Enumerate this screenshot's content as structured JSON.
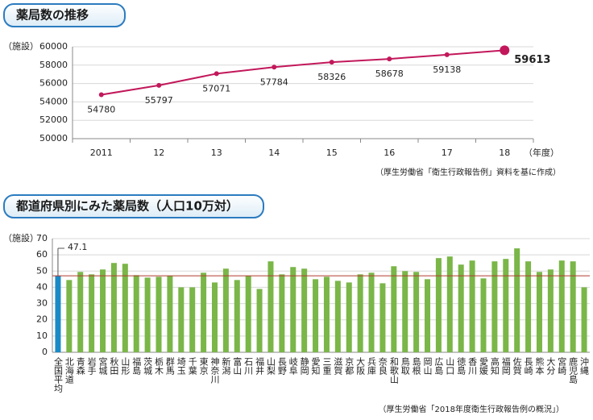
{
  "chart_data": [
    {
      "type": "line",
      "title": "薬局数の推移",
      "y_unit": "（施設）",
      "x_unit": "（年度）",
      "source": "（厚生労働省「衛生行政報告例」資料を基に作成）",
      "categories": [
        "2011",
        "12",
        "13",
        "14",
        "15",
        "16",
        "17",
        "18"
      ],
      "values": [
        54780,
        55797,
        57071,
        57784,
        58326,
        58678,
        59138,
        59613
      ],
      "color": "#c2185b",
      "ylim": [
        50000,
        60000
      ],
      "yticks": [
        50000,
        52000,
        54000,
        56000,
        58000,
        60000
      ],
      "grid": true
    },
    {
      "type": "bar",
      "title": "都道府県別にみた薬局数（人口10万対）",
      "y_unit": "（施設）",
      "source": "（厚生労働省「2018年度衛生行政報告例の概況」）",
      "categories": [
        "全国平均",
        "北海道",
        "青森",
        "岩手",
        "宮城",
        "秋田",
        "山形",
        "福島",
        "茨城",
        "栃木",
        "群馬",
        "埼玉",
        "千葉",
        "東京",
        "神奈川",
        "新潟",
        "富山",
        "石川",
        "福井",
        "山梨",
        "長野",
        "岐阜",
        "静岡",
        "愛知",
        "三重",
        "滋賀",
        "京都",
        "大阪",
        "兵庫",
        "奈良",
        "和歌山",
        "鳥取",
        "島根",
        "岡山",
        "広島",
        "山口",
        "徳島",
        "香川",
        "愛媛",
        "高知",
        "福岡",
        "佐賀",
        "長崎",
        "熊本",
        "大分",
        "宮崎",
        "鹿児島",
        "沖縄"
      ],
      "values": [
        47.1,
        44.5,
        49.5,
        48,
        51,
        55,
        54.5,
        47.5,
        46,
        46.5,
        47,
        40,
        40,
        49,
        43,
        51.5,
        44.5,
        47,
        39,
        56,
        48,
        52.5,
        51.5,
        45,
        46.5,
        44,
        43,
        48,
        49,
        42.5,
        53,
        50,
        49.5,
        45,
        58,
        59,
        54,
        56.5,
        45.5,
        56,
        57.5,
        64,
        56,
        49.5,
        51,
        56.5,
        56,
        40
      ],
      "colors": [
        "#1a8ac6",
        "#7ab648"
      ],
      "reference_value": 47.1,
      "reference_color": "#b03a2e",
      "ylim": [
        0,
        70
      ],
      "yticks": [
        0,
        10,
        20,
        30,
        40,
        50,
        60,
        70
      ],
      "grid": true
    }
  ]
}
